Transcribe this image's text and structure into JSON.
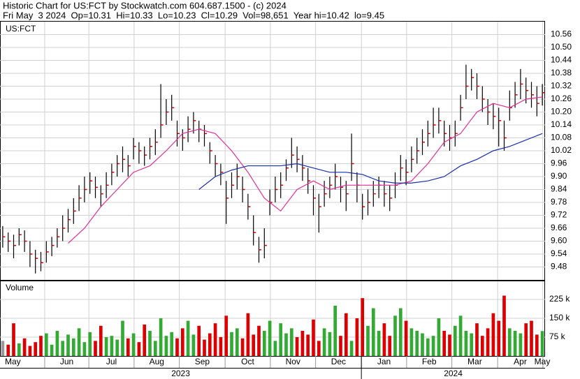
{
  "chart_data": [
    {
      "type": "ohlc",
      "title": "Historic Chart for US:FCT by Stockwatch.com 604.687.1500 - (c) 2024",
      "subtitle": "Fri May  3 2024  Op=10.31  Hi=10.33  Lo=10.23  Cl=10.29  Vol=98,651  Year hi=10.42  lo=9.45",
      "label": "US:FCT",
      "xlim": [
        -0.5,
        99.5
      ],
      "xticks": [
        {
          "value": -4,
          "label": "May"
        },
        {
          "value": 7.7,
          "label": "Jun"
        },
        {
          "value": 15.8,
          "label": "Jul"
        },
        {
          "value": 24.1,
          "label": "Aug"
        },
        {
          "value": 32.4,
          "label": "Sep"
        },
        {
          "value": 40.8,
          "label": "Oct"
        },
        {
          "value": 49.1,
          "label": "Nov"
        },
        {
          "value": 57.4,
          "label": "Dec"
        },
        {
          "value": 65.8,
          "label": "Jan"
        },
        {
          "value": 74.1,
          "label": "Feb"
        },
        {
          "value": 82.4,
          "label": "Mar"
        },
        {
          "value": 90.8,
          "label": "Apr"
        },
        {
          "value": 99.1,
          "label": "May"
        }
      ],
      "years": [
        {
          "value": -4,
          "label": "2023"
        },
        {
          "value": 65.8,
          "label": "2024"
        }
      ],
      "ylim": [
        9.42,
        10.62
      ],
      "yticks": [
        9.48,
        9.54,
        {
          "value": 9.6,
          "label": "9.60"
        },
        9.66,
        9.72,
        9.78,
        9.84,
        {
          "value": 9.9,
          "label": "9.90"
        },
        9.96,
        10.02,
        10.08,
        10.14,
        {
          "value": 10.2,
          "label": "10.20"
        },
        10.26,
        10.32,
        10.38,
        10.44,
        {
          "value": 10.5,
          "label": "10.50"
        },
        10.56
      ],
      "grid": true,
      "bar_color": "#000000",
      "close_color": "#cc0000",
      "high": [
        9.67,
        9.64,
        9.63,
        9.66,
        9.65,
        9.6,
        9.56,
        9.55,
        9.6,
        9.62,
        9.66,
        9.72,
        9.75,
        9.8,
        9.86,
        9.9,
        9.92,
        9.9,
        9.86,
        9.92,
        9.96,
        10.0,
        10.04,
        10.0,
        10.08,
        10.06,
        10.04,
        10.08,
        10.12,
        10.33,
        10.26,
        10.28,
        10.16,
        10.12,
        10.18,
        10.2,
        10.16,
        10.14,
        10.06,
        10.0,
        9.96,
        9.88,
        9.92,
        9.96,
        9.9,
        9.82,
        9.72,
        9.62,
        9.66,
        9.84,
        9.9,
        9.92,
        9.98,
        10.08,
        10.04,
        10.0,
        9.94,
        9.86,
        9.82,
        9.88,
        9.9,
        9.96,
        9.9,
        9.88,
        10.1,
        9.92,
        9.82,
        9.84,
        9.88,
        9.9,
        9.88,
        9.86,
        9.92,
        10.0,
        9.98,
        10.04,
        10.08,
        10.12,
        10.16,
        10.22,
        10.22,
        10.16,
        10.14,
        10.16,
        10.28,
        10.42,
        10.4,
        10.38,
        10.32,
        10.26,
        10.24,
        10.22,
        10.16,
        10.3,
        10.34,
        10.4,
        10.36,
        10.34,
        10.32,
        10.33
      ],
      "low": [
        9.57,
        9.55,
        9.52,
        9.58,
        9.55,
        9.48,
        9.45,
        9.46,
        9.5,
        9.53,
        9.57,
        9.6,
        9.64,
        9.68,
        9.74,
        9.78,
        9.82,
        9.8,
        9.76,
        9.8,
        9.86,
        9.9,
        9.92,
        9.9,
        9.98,
        9.96,
        9.95,
        9.98,
        10.0,
        10.08,
        10.14,
        10.16,
        10.04,
        10.02,
        10.06,
        10.1,
        10.06,
        10.04,
        9.96,
        9.9,
        9.86,
        9.68,
        9.8,
        9.84,
        9.78,
        9.7,
        9.58,
        9.5,
        9.52,
        9.72,
        9.78,
        9.8,
        9.88,
        9.94,
        9.92,
        9.88,
        9.82,
        9.72,
        9.64,
        9.76,
        9.8,
        9.84,
        9.78,
        9.74,
        9.88,
        9.78,
        9.7,
        9.72,
        9.76,
        9.8,
        9.76,
        9.74,
        9.8,
        9.88,
        9.86,
        9.92,
        9.96,
        10.0,
        10.04,
        10.08,
        10.1,
        10.04,
        10.02,
        10.04,
        10.16,
        10.26,
        10.3,
        10.26,
        10.2,
        10.14,
        10.12,
        10.04,
        10.02,
        10.16,
        10.22,
        10.26,
        10.24,
        10.22,
        10.18,
        10.23
      ],
      "close": [
        9.62,
        9.6,
        9.58,
        9.63,
        9.6,
        9.54,
        9.52,
        9.5,
        9.55,
        9.58,
        9.62,
        9.66,
        9.7,
        9.74,
        9.8,
        9.84,
        9.88,
        9.85,
        9.82,
        9.86,
        9.92,
        9.96,
        9.98,
        9.95,
        10.04,
        10.02,
        10.0,
        10.04,
        10.06,
        10.14,
        10.2,
        10.22,
        10.1,
        10.08,
        10.12,
        10.16,
        10.12,
        10.1,
        10.02,
        9.96,
        9.92,
        9.8,
        9.86,
        9.9,
        9.84,
        9.76,
        9.64,
        9.56,
        9.58,
        9.78,
        9.84,
        9.86,
        9.94,
        10.0,
        9.98,
        9.94,
        9.88,
        9.8,
        9.76,
        9.82,
        9.86,
        9.9,
        9.85,
        9.82,
        9.96,
        9.86,
        9.76,
        9.78,
        9.82,
        9.86,
        9.82,
        9.8,
        9.86,
        9.94,
        9.92,
        9.98,
        10.02,
        10.06,
        10.1,
        10.14,
        10.16,
        10.1,
        10.08,
        10.1,
        10.22,
        10.32,
        10.36,
        10.32,
        10.26,
        10.2,
        10.18,
        10.16,
        10.08,
        10.22,
        10.28,
        10.33,
        10.3,
        10.28,
        10.24,
        10.29
      ],
      "series": [
        {
          "color": "#e0309a",
          "x": [
            12,
            15,
            18,
            21,
            24,
            27,
            30,
            33,
            36,
            39,
            42,
            45,
            48,
            51,
            54,
            57,
            60,
            63,
            66,
            69,
            72,
            75,
            78,
            81,
            84,
            87,
            90,
            93,
            96,
            99
          ],
          "values": [
            9.59,
            9.66,
            9.76,
            9.84,
            9.92,
            9.95,
            10.02,
            10.1,
            10.12,
            10.1,
            10.02,
            9.92,
            9.8,
            9.74,
            9.84,
            9.88,
            9.84,
            9.86,
            9.86,
            9.86,
            9.86,
            9.88,
            9.96,
            10.06,
            10.1,
            10.2,
            10.24,
            10.22,
            10.26,
            10.27
          ]
        },
        {
          "color": "#1a2fa8",
          "x": [
            36,
            39,
            42,
            45,
            48,
            51,
            54,
            57,
            60,
            63,
            66,
            69,
            72,
            75,
            78,
            81,
            84,
            87,
            90,
            93,
            96,
            99
          ],
          "values": [
            9.84,
            9.9,
            9.93,
            9.95,
            9.95,
            9.95,
            9.96,
            9.94,
            9.92,
            9.92,
            9.91,
            9.88,
            9.87,
            9.87,
            9.88,
            9.9,
            9.95,
            9.98,
            10.02,
            10.04,
            10.07,
            10.1
          ]
        }
      ]
    },
    {
      "type": "bar",
      "label": "Volume",
      "ylim": [
        0,
        297
      ],
      "yticks": [
        {
          "value": 75,
          "label": "75 k"
        },
        {
          "value": 150,
          "label": "150 k"
        },
        {
          "value": 225,
          "label": "225 k"
        }
      ],
      "grid": true,
      "up_color": "#33aa33",
      "down_color": "#dd0000",
      "flat_color": "#999999",
      "values": [
        60,
        45,
        130,
        50,
        70,
        40,
        55,
        80,
        90,
        45,
        100,
        60,
        85,
        70,
        110,
        55,
        95,
        60,
        120,
        75,
        80,
        65,
        140,
        70,
        90,
        55,
        125,
        100,
        60,
        150,
        80,
        95,
        70,
        110,
        140,
        85,
        120,
        65,
        90,
        130,
        75,
        160,
        95,
        110,
        70,
        170,
        85,
        120,
        100,
        140,
        60,
        130,
        90,
        110,
        75,
        100,
        85,
        145,
        60,
        110,
        95,
        200,
        80,
        170,
        60,
        150,
        230,
        120,
        190,
        100,
        130,
        80,
        160,
        190,
        140,
        110,
        100,
        90,
        70,
        80,
        150,
        100,
        85,
        120,
        160,
        100,
        90,
        130,
        80,
        110,
        170,
        140,
        240,
        110,
        100,
        90,
        130,
        140,
        85,
        99
      ]
    }
  ]
}
